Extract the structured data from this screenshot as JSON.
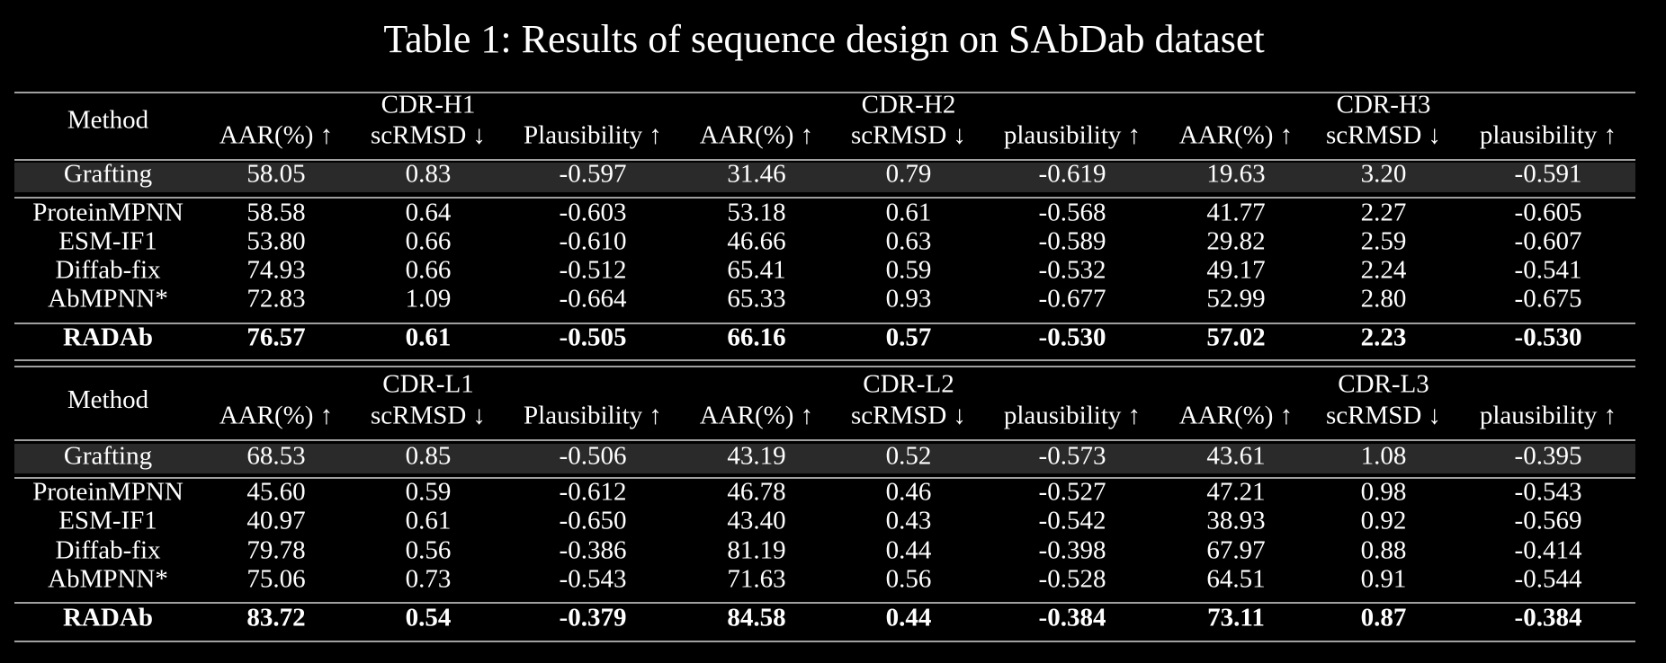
{
  "title": "Table 1: Results of sequence design on SAbDab dataset",
  "tables": [
    {
      "method_header": "Method",
      "groups": [
        "CDR-H1",
        "CDR-H2",
        "CDR-H3"
      ],
      "columns": [
        "AAR(%) ↑",
        "scRMSD ↓",
        "Plausibility ↑",
        "AAR(%) ↑",
        "scRMSD ↓",
        "plausibility ↑",
        "AAR(%) ↑",
        "scRMSD ↓",
        "plausibility ↑"
      ],
      "rows": [
        [
          "Grafting",
          "58.05",
          "0.83",
          "-0.597",
          "31.46",
          "0.79",
          "-0.619",
          "19.63",
          "3.20",
          "-0.591"
        ],
        [
          "ProteinMPNN",
          "58.58",
          "0.64",
          "-0.603",
          "53.18",
          "0.61",
          "-0.568",
          "41.77",
          "2.27",
          "-0.605"
        ],
        [
          "ESM-IF1",
          "53.80",
          "0.66",
          "-0.610",
          "46.66",
          "0.63",
          "-0.589",
          "29.82",
          "2.59",
          "-0.607"
        ],
        [
          "Diffab-fix",
          "74.93",
          "0.66",
          "-0.512",
          "65.41",
          "0.59",
          "-0.532",
          "49.17",
          "2.24",
          "-0.541"
        ],
        [
          "AbMPNN*",
          "72.83",
          "1.09",
          "-0.664",
          "65.33",
          "0.93",
          "-0.677",
          "52.99",
          "2.80",
          "-0.675"
        ],
        [
          "RADAb",
          "76.57",
          "0.61",
          "-0.505",
          "66.16",
          "0.57",
          "-0.530",
          "57.02",
          "2.23",
          "-0.530"
        ]
      ]
    },
    {
      "method_header": "Method",
      "groups": [
        "CDR-L1",
        "CDR-L2",
        "CDR-L3"
      ],
      "columns": [
        "AAR(%) ↑",
        "scRMSD ↓",
        "Plausibility ↑",
        "AAR(%) ↑",
        "scRMSD ↓",
        "plausibility ↑",
        "AAR(%) ↑",
        "scRMSD ↓",
        "plausibility ↑"
      ],
      "rows": [
        [
          "Grafting",
          "68.53",
          "0.85",
          "-0.506",
          "43.19",
          "0.52",
          "-0.573",
          "43.61",
          "1.08",
          "-0.395"
        ],
        [
          "ProteinMPNN",
          "45.60",
          "0.59",
          "-0.612",
          "46.78",
          "0.46",
          "-0.527",
          "47.21",
          "0.98",
          "-0.543"
        ],
        [
          "ESM-IF1",
          "40.97",
          "0.61",
          "-0.650",
          "43.40",
          "0.43",
          "-0.542",
          "38.93",
          "0.92",
          "-0.569"
        ],
        [
          "Diffab-fix",
          "79.78",
          "0.56",
          "-0.386",
          "81.19",
          "0.44",
          "-0.398",
          "67.97",
          "0.88",
          "-0.414"
        ],
        [
          "AbMPNN*",
          "75.06",
          "0.73",
          "-0.543",
          "71.63",
          "0.56",
          "-0.528",
          "64.51",
          "0.91",
          "-0.544"
        ],
        [
          "RADAb",
          "83.72",
          "0.54",
          "-0.379",
          "84.58",
          "0.44",
          "-0.384",
          "73.11",
          "0.87",
          "-0.384"
        ]
      ]
    }
  ]
}
